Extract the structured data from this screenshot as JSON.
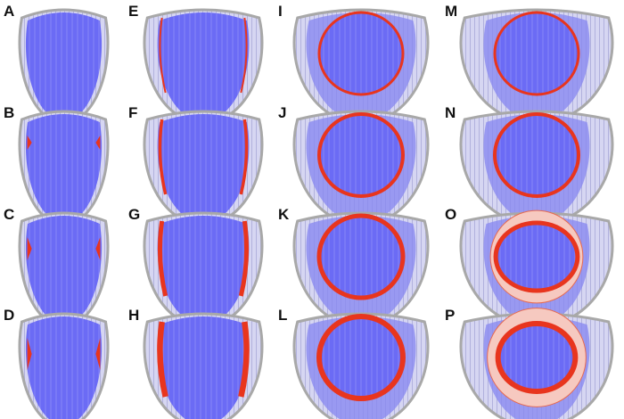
{
  "panels": [
    {
      "label": "A"
    },
    {
      "label": "B"
    },
    {
      "label": "C"
    },
    {
      "label": "D"
    },
    {
      "label": "E"
    },
    {
      "label": "F"
    },
    {
      "label": "G"
    },
    {
      "label": "H"
    },
    {
      "label": "I"
    },
    {
      "label": "J"
    },
    {
      "label": "K"
    },
    {
      "label": "L"
    },
    {
      "label": "M"
    },
    {
      "label": "N"
    },
    {
      "label": "O"
    },
    {
      "label": "P"
    }
  ]
}
